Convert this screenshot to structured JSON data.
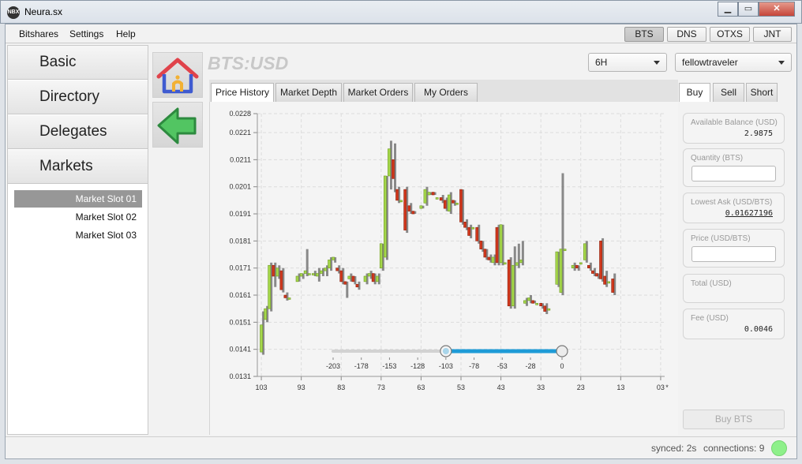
{
  "window": {
    "title": "Neura.sx",
    "icon": "app-logo-icon",
    "minimize_icon": "minimize-icon",
    "maximize_icon": "maximize-icon",
    "close_icon": "close-icon"
  },
  "menu": {
    "items": [
      "Bitshares",
      "Settings",
      "Help"
    ]
  },
  "networks": {
    "items": [
      "BTS",
      "DNS",
      "OTXS",
      "JNT"
    ],
    "active": "BTS"
  },
  "sidebar": {
    "nav": [
      "Basic",
      "Directory",
      "Delegates",
      "Markets"
    ],
    "slots": [
      "Market Slot 01",
      "Market Slot 02",
      "Market Slot 03"
    ],
    "selected_slot": "Market Slot 01"
  },
  "icons": {
    "home": "home-icon",
    "back": "back-arrow-icon"
  },
  "market": {
    "pair": "BTS:USD",
    "interval": "6H",
    "account": "fellowtraveler"
  },
  "tabs": [
    "Price History",
    "Market Depth",
    "Market Orders",
    "My Orders"
  ],
  "active_tab": "Price History",
  "trade": {
    "tabs": [
      "Buy",
      "Sell",
      "Short"
    ],
    "active_tab": "Buy",
    "available_balance_label": "Available Balance (USD)",
    "available_balance": "2.9875",
    "quantity_label": "Quantity (BTS)",
    "quantity_value": "",
    "lowest_ask_label": "Lowest Ask (USD/BTS)",
    "lowest_ask": "0.01627196",
    "price_label": "Price (USD/BTS)",
    "price_value": "",
    "total_label": "Total (USD)",
    "total_value": "",
    "fee_label": "Fee (USD)",
    "fee": "0.0046",
    "submit_label": "Buy BTS"
  },
  "status": {
    "synced": "synced: 2s",
    "connections": "connections: 9",
    "indicator_color": "#8ef08a"
  },
  "chart_data": {
    "type": "candlestick",
    "title": "",
    "xlabel": "",
    "ylabel": "",
    "y_ticks": [
      "0.0131",
      "0.0141",
      "0.0151",
      "0.0161",
      "0.0171",
      "0.0181",
      "0.0191",
      "0.0201",
      "0.0211",
      "0.0221",
      "0.0228"
    ],
    "ylim": [
      0.0131,
      0.0228
    ],
    "x_ticks": [
      "103",
      "93",
      "83",
      "73",
      "63",
      "53",
      "43",
      "33",
      "23",
      "13",
      "03",
      "*"
    ],
    "xlim": [
      104,
      2
    ],
    "grid": true,
    "colors": {
      "up": "#a6d84c",
      "down": "#d2381d",
      "wick": "#777777"
    },
    "candles": [
      {
        "x": 103,
        "o": 0.014,
        "c": 0.015,
        "h": 0.0155,
        "l": 0.0139
      },
      {
        "x": 102,
        "o": 0.0152,
        "c": 0.0156,
        "h": 0.0157,
        "l": 0.0151
      },
      {
        "x": 101,
        "o": 0.0156,
        "c": 0.0172,
        "h": 0.0173,
        "l": 0.0155
      },
      {
        "x": 100,
        "o": 0.0172,
        "c": 0.0168,
        "h": 0.0173,
        "l": 0.0164
      },
      {
        "x": 99,
        "o": 0.0168,
        "c": 0.0171,
        "h": 0.0172,
        "l": 0.0167
      },
      {
        "x": 98,
        "o": 0.017,
        "c": 0.0163,
        "h": 0.0171,
        "l": 0.0162
      },
      {
        "x": 97,
        "o": 0.0161,
        "c": 0.016,
        "h": 0.0162,
        "l": 0.0159
      },
      {
        "x": 96,
        "o": 0.016,
        "c": 0.016,
        "h": 0.016,
        "l": 0.016
      },
      {
        "x": 94,
        "o": 0.0166,
        "c": 0.0168,
        "h": 0.0169,
        "l": 0.0166
      },
      {
        "x": 93,
        "o": 0.0168,
        "c": 0.0169,
        "h": 0.0169,
        "l": 0.0167
      },
      {
        "x": 92,
        "o": 0.0169,
        "c": 0.017,
        "h": 0.0178,
        "l": 0.0168
      },
      {
        "x": 91,
        "o": 0.0169,
        "c": 0.0169,
        "h": 0.0169,
        "l": 0.0169
      },
      {
        "x": 90,
        "o": 0.0169,
        "c": 0.0169,
        "h": 0.017,
        "l": 0.0168
      },
      {
        "x": 89,
        "o": 0.0168,
        "c": 0.0169,
        "h": 0.0171,
        "l": 0.0166
      },
      {
        "x": 88,
        "o": 0.0169,
        "c": 0.017,
        "h": 0.0171,
        "l": 0.0168
      },
      {
        "x": 87,
        "o": 0.017,
        "c": 0.0171,
        "h": 0.0172,
        "l": 0.0168
      },
      {
        "x": 86,
        "o": 0.0171,
        "c": 0.0174,
        "h": 0.0175,
        "l": 0.017
      },
      {
        "x": 85,
        "o": 0.0174,
        "c": 0.0175,
        "h": 0.0175,
        "l": 0.0173
      },
      {
        "x": 84,
        "o": 0.0171,
        "c": 0.017,
        "h": 0.0172,
        "l": 0.0169
      },
      {
        "x": 83,
        "o": 0.017,
        "c": 0.0166,
        "h": 0.0171,
        "l": 0.0165
      },
      {
        "x": 82,
        "o": 0.0166,
        "c": 0.0165,
        "h": 0.0166,
        "l": 0.016
      },
      {
        "x": 81,
        "o": 0.0167,
        "c": 0.0168,
        "h": 0.0169,
        "l": 0.0166
      },
      {
        "x": 80,
        "o": 0.0168,
        "c": 0.0166,
        "h": 0.0168,
        "l": 0.0165
      },
      {
        "x": 79,
        "o": 0.0165,
        "c": 0.0164,
        "h": 0.0166,
        "l": 0.0163
      },
      {
        "x": 77,
        "o": 0.0166,
        "c": 0.0168,
        "h": 0.0169,
        "l": 0.0165
      },
      {
        "x": 76,
        "o": 0.0168,
        "c": 0.0169,
        "h": 0.017,
        "l": 0.0167
      },
      {
        "x": 75,
        "o": 0.0169,
        "c": 0.0166,
        "h": 0.0169,
        "l": 0.0165
      },
      {
        "x": 74,
        "o": 0.0166,
        "c": 0.0168,
        "h": 0.0169,
        "l": 0.0165
      },
      {
        "x": 73,
        "o": 0.0171,
        "c": 0.018,
        "h": 0.018,
        "l": 0.017
      },
      {
        "x": 72,
        "o": 0.0175,
        "c": 0.0205,
        "h": 0.0205,
        "l": 0.0174
      },
      {
        "x": 71,
        "o": 0.0205,
        "c": 0.0215,
        "h": 0.0218,
        "l": 0.02
      },
      {
        "x": 70,
        "o": 0.0211,
        "c": 0.0204,
        "h": 0.0217,
        "l": 0.0199
      },
      {
        "x": 69,
        "o": 0.02,
        "c": 0.0196,
        "h": 0.0201,
        "l": 0.0195
      },
      {
        "x": 68,
        "o": 0.0196,
        "c": 0.0196,
        "h": 0.0196,
        "l": 0.0196
      },
      {
        "x": 67,
        "o": 0.02,
        "c": 0.0185,
        "h": 0.0201,
        "l": 0.0184
      },
      {
        "x": 66,
        "o": 0.0194,
        "c": 0.0192,
        "h": 0.0195,
        "l": 0.0191
      },
      {
        "x": 65,
        "o": 0.0192,
        "c": 0.0191,
        "h": 0.0192,
        "l": 0.0191
      },
      {
        "x": 63,
        "o": 0.0193,
        "c": 0.0194,
        "h": 0.0194,
        "l": 0.0193
      },
      {
        "x": 62,
        "o": 0.0195,
        "c": 0.02,
        "h": 0.0201,
        "l": 0.0194
      },
      {
        "x": 61,
        "o": 0.0198,
        "c": 0.0199,
        "h": 0.0199,
        "l": 0.0198
      },
      {
        "x": 60,
        "o": 0.0199,
        "c": 0.0198,
        "h": 0.0199,
        "l": 0.0198
      },
      {
        "x": 59,
        "o": 0.0197,
        "c": 0.0197,
        "h": 0.0197,
        "l": 0.0197
      },
      {
        "x": 58,
        "o": 0.0197,
        "c": 0.0196,
        "h": 0.0198,
        "l": 0.0195
      },
      {
        "x": 57,
        "o": 0.0196,
        "c": 0.0193,
        "h": 0.0197,
        "l": 0.0192
      },
      {
        "x": 56,
        "o": 0.0192,
        "c": 0.0198,
        "h": 0.0199,
        "l": 0.0191
      },
      {
        "x": 55,
        "o": 0.0196,
        "c": 0.0195,
        "h": 0.0196,
        "l": 0.0194
      },
      {
        "x": 54,
        "o": 0.0195,
        "c": 0.0195,
        "h": 0.0195,
        "l": 0.0195
      },
      {
        "x": 53,
        "o": 0.02,
        "c": 0.0188,
        "h": 0.02,
        "l": 0.0187
      },
      {
        "x": 52,
        "o": 0.0188,
        "c": 0.0186,
        "h": 0.0189,
        "l": 0.0185
      },
      {
        "x": 51,
        "o": 0.0186,
        "c": 0.0183,
        "h": 0.0187,
        "l": 0.0182
      },
      {
        "x": 50,
        "o": 0.0186,
        "c": 0.0186,
        "h": 0.0186,
        "l": 0.0186
      },
      {
        "x": 49,
        "o": 0.0186,
        "c": 0.0181,
        "h": 0.0187,
        "l": 0.018
      },
      {
        "x": 48,
        "o": 0.0181,
        "c": 0.0178,
        "h": 0.0181,
        "l": 0.0177
      },
      {
        "x": 47,
        "o": 0.0178,
        "c": 0.0175,
        "h": 0.0178,
        "l": 0.0174
      },
      {
        "x": 46,
        "o": 0.0175,
        "c": 0.0174,
        "h": 0.0176,
        "l": 0.0173
      },
      {
        "x": 45,
        "o": 0.0173,
        "c": 0.0175,
        "h": 0.0176,
        "l": 0.0172
      },
      {
        "x": 44,
        "o": 0.0186,
        "c": 0.0173,
        "h": 0.0187,
        "l": 0.0172
      },
      {
        "x": 43,
        "o": 0.0173,
        "c": 0.0187,
        "h": 0.0187,
        "l": 0.0172
      },
      {
        "x": 42,
        "o": 0.0173,
        "c": 0.0173,
        "h": 0.0173,
        "l": 0.0173
      },
      {
        "x": 41,
        "o": 0.0174,
        "c": 0.0157,
        "h": 0.0175,
        "l": 0.0156
      },
      {
        "x": 40,
        "o": 0.0157,
        "c": 0.0172,
        "h": 0.0179,
        "l": 0.0156
      },
      {
        "x": 39,
        "o": 0.0172,
        "c": 0.0173,
        "h": 0.018,
        "l": 0.0171
      },
      {
        "x": 38,
        "o": 0.0173,
        "c": 0.0174,
        "h": 0.0181,
        "l": 0.0172
      },
      {
        "x": 37,
        "o": 0.0158,
        "c": 0.0159,
        "h": 0.016,
        "l": 0.0157
      },
      {
        "x": 36,
        "o": 0.0159,
        "c": 0.016,
        "h": 0.0161,
        "l": 0.0158
      },
      {
        "x": 35,
        "o": 0.0159,
        "c": 0.0158,
        "h": 0.0159,
        "l": 0.0158
      },
      {
        "x": 34,
        "o": 0.0158,
        "c": 0.0158,
        "h": 0.0158,
        "l": 0.0158
      },
      {
        "x": 33,
        "o": 0.0158,
        "c": 0.0157,
        "h": 0.0158,
        "l": 0.0156
      },
      {
        "x": 32,
        "o": 0.0157,
        "c": 0.0155,
        "h": 0.0158,
        "l": 0.0154
      },
      {
        "x": 31,
        "o": 0.0156,
        "c": 0.0156,
        "h": 0.0156,
        "l": 0.0156
      },
      {
        "x": 29,
        "o": 0.0165,
        "c": 0.0177,
        "h": 0.0177,
        "l": 0.0164
      },
      {
        "x": 28,
        "o": 0.0162,
        "c": 0.0178,
        "h": 0.0206,
        "l": 0.0161
      },
      {
        "x": 27,
        "o": 0.0178,
        "c": 0.0178,
        "h": 0.0178,
        "l": 0.0178
      },
      {
        "x": 25,
        "o": 0.0171,
        "c": 0.0172,
        "h": 0.0173,
        "l": 0.017
      },
      {
        "x": 24,
        "o": 0.0172,
        "c": 0.0171,
        "h": 0.0172,
        "l": 0.017
      },
      {
        "x": 23,
        "o": 0.0173,
        "c": 0.0173,
        "h": 0.0173,
        "l": 0.0173
      },
      {
        "x": 22,
        "o": 0.0174,
        "c": 0.018,
        "h": 0.0181,
        "l": 0.0173
      },
      {
        "x": 21,
        "o": 0.0172,
        "c": 0.0171,
        "h": 0.0173,
        "l": 0.017
      },
      {
        "x": 20,
        "o": 0.017,
        "c": 0.0169,
        "h": 0.0171,
        "l": 0.0168
      },
      {
        "x": 19,
        "o": 0.0169,
        "c": 0.0168,
        "h": 0.0169,
        "l": 0.0167
      },
      {
        "x": 18,
        "o": 0.0181,
        "c": 0.0167,
        "h": 0.0182,
        "l": 0.0166
      },
      {
        "x": 17,
        "o": 0.0168,
        "c": 0.0165,
        "h": 0.017,
        "l": 0.0164
      },
      {
        "x": 16,
        "o": 0.0166,
        "c": 0.0166,
        "h": 0.0166,
        "l": 0.0166
      },
      {
        "x": 15,
        "o": 0.0167,
        "c": 0.0162,
        "h": 0.0169,
        "l": 0.0161
      }
    ]
  },
  "range_slider": {
    "ticks": [
      "-203",
      "-178",
      "-153",
      "-128",
      "-103",
      "-78",
      "-53",
      "-28",
      "0"
    ],
    "min": -203,
    "max": 0,
    "low": -103,
    "high": 0
  }
}
